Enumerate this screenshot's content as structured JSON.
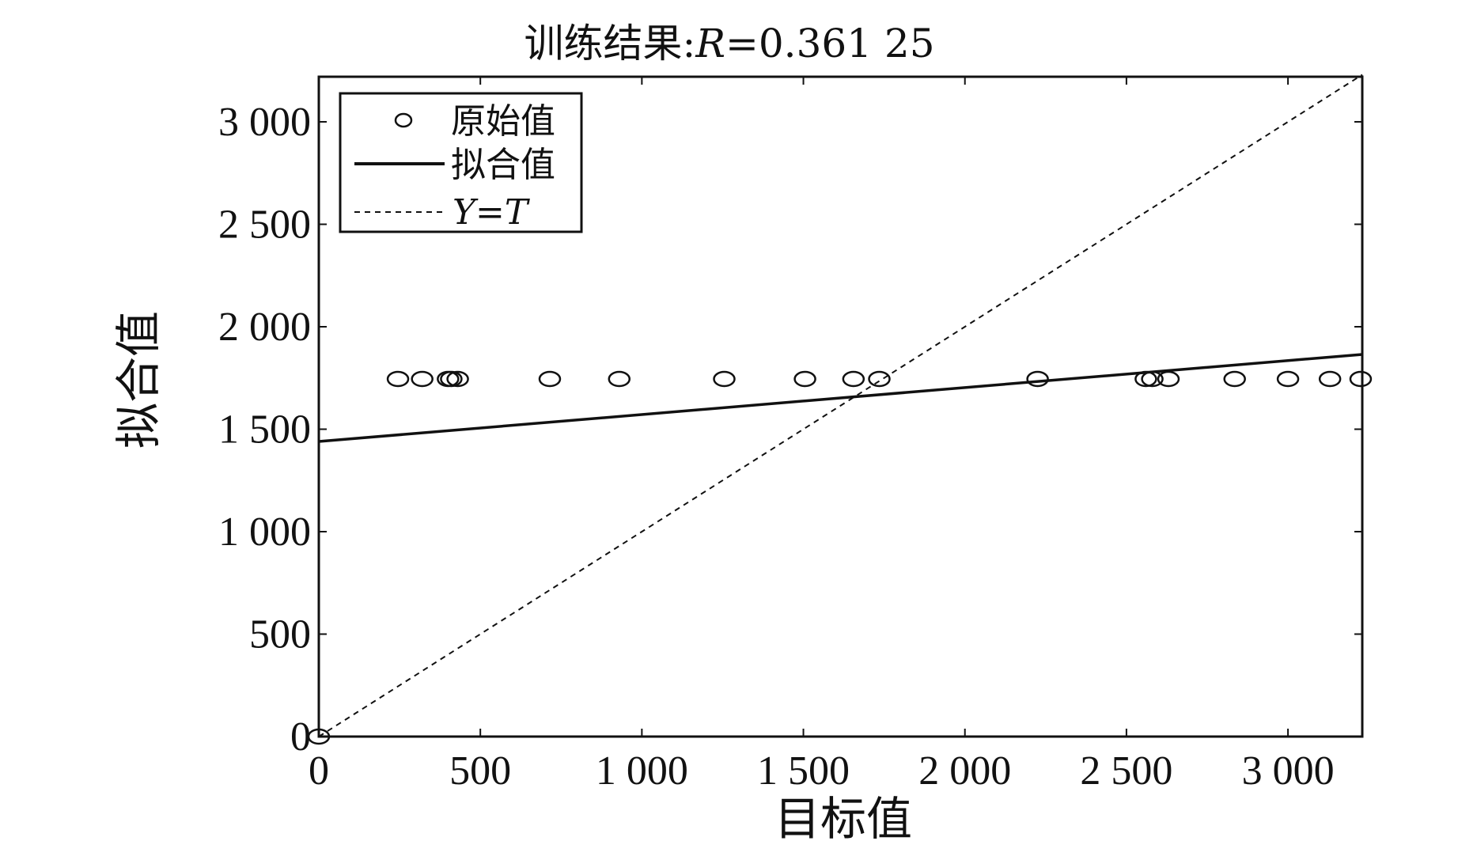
{
  "chart_data": {
    "type": "scatter",
    "title_prefix": "训练结果:",
    "title_var": "R",
    "title_value": "=0.361 25",
    "xlabel": "目标值",
    "ylabel": "拟合值",
    "xlim": [
      0,
      3230
    ],
    "ylim": [
      0,
      3220
    ],
    "x_ticks": [
      0,
      500,
      1000,
      1500,
      2000,
      2500,
      3000
    ],
    "x_tick_labels": [
      "0",
      "500",
      "1 000",
      "1 500",
      "2 000",
      "2 500",
      "3 000"
    ],
    "y_ticks": [
      0,
      500,
      1000,
      1500,
      2000,
      2500,
      3000
    ],
    "y_tick_labels": [
      "0",
      "500",
      "1 000",
      "1 500",
      "2 000",
      "2 500",
      "3 000"
    ],
    "legend_position": "top-left",
    "series": [
      {
        "name": "原始值",
        "kind": "markers",
        "x": [
          0,
          245,
          320,
          400,
          410,
          430,
          715,
          930,
          1255,
          1505,
          1655,
          1735,
          2225,
          2560,
          2580,
          2630,
          2835,
          3000,
          3130,
          3225
        ],
        "y": [
          0,
          1745,
          1745,
          1745,
          1745,
          1745,
          1745,
          1745,
          1745,
          1745,
          1745,
          1745,
          1745,
          1745,
          1745,
          1745,
          1745,
          1745,
          1745,
          1745
        ]
      },
      {
        "name": "拟合值",
        "kind": "line",
        "x": [
          0,
          3230
        ],
        "y": [
          1440,
          1865
        ]
      },
      {
        "name_var_y": "Y",
        "name_eq": "=",
        "name_var_t": "T",
        "kind": "dashed-line",
        "x": [
          0,
          3230
        ],
        "y": [
          0,
          3230
        ]
      }
    ]
  }
}
